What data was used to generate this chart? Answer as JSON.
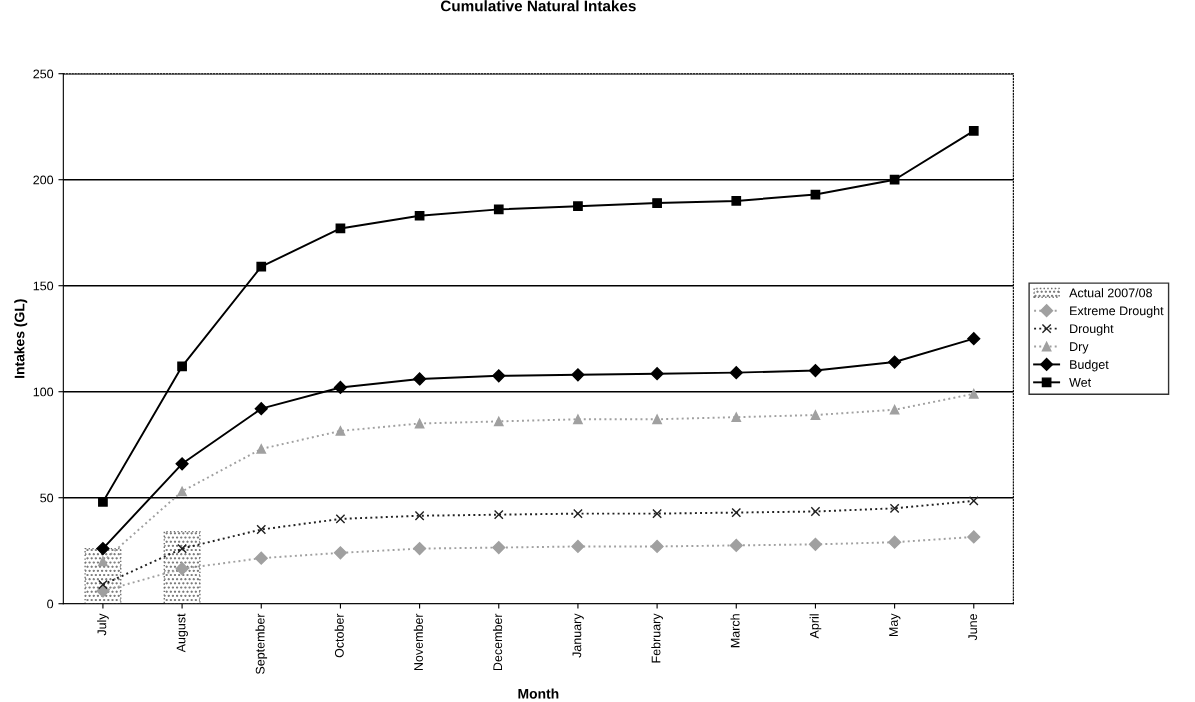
{
  "chart_data": {
    "type": "line",
    "title": "Cumulative Natural Intakes",
    "xlabel": "Month",
    "ylabel": "Intakes (GL)",
    "categories": [
      "July",
      "August",
      "September",
      "October",
      "November",
      "December",
      "January",
      "February",
      "March",
      "April",
      "May",
      "June"
    ],
    "ylim": [
      0,
      250
    ],
    "yticks": [
      0,
      50,
      100,
      150,
      200,
      250
    ],
    "grid": "y",
    "legend": "right",
    "series": [
      {
        "name": "Actual 2007/08",
        "type": "bar",
        "color": "#707070",
        "values": [
          26,
          34,
          null,
          null,
          null,
          null,
          null,
          null,
          null,
          null,
          null,
          null
        ]
      },
      {
        "name": "Extreme Drought",
        "color": "#a0a0a0",
        "marker": "diamond",
        "line_style": "dotted",
        "values": [
          6,
          16.5,
          21.5,
          24,
          26,
          26.5,
          27,
          27,
          27.5,
          28,
          29,
          31.5
        ]
      },
      {
        "name": "Drought",
        "color": "#202020",
        "marker": "cross",
        "line_style": "dotted",
        "values": [
          9,
          26,
          35,
          40,
          41.5,
          42,
          42.5,
          42.5,
          43,
          43.5,
          45,
          48.5
        ]
      },
      {
        "name": "Dry",
        "color": "#a0a0a0",
        "marker": "triangle",
        "line_style": "dotted",
        "values": [
          20,
          53,
          73,
          81.5,
          85,
          86,
          87,
          87,
          88,
          89,
          91.5,
          99
        ]
      },
      {
        "name": "Budget",
        "color": "#000000",
        "marker": "diamond",
        "line_style": "solid",
        "values": [
          26,
          66,
          92,
          102,
          106,
          107.5,
          108,
          108.5,
          109,
          110,
          114,
          125
        ]
      },
      {
        "name": "Wet",
        "color": "#000000",
        "marker": "square",
        "line_style": "solid",
        "values": [
          48,
          112,
          159,
          177,
          183,
          186,
          187.5,
          189,
          190,
          193,
          200,
          223
        ]
      }
    ]
  }
}
